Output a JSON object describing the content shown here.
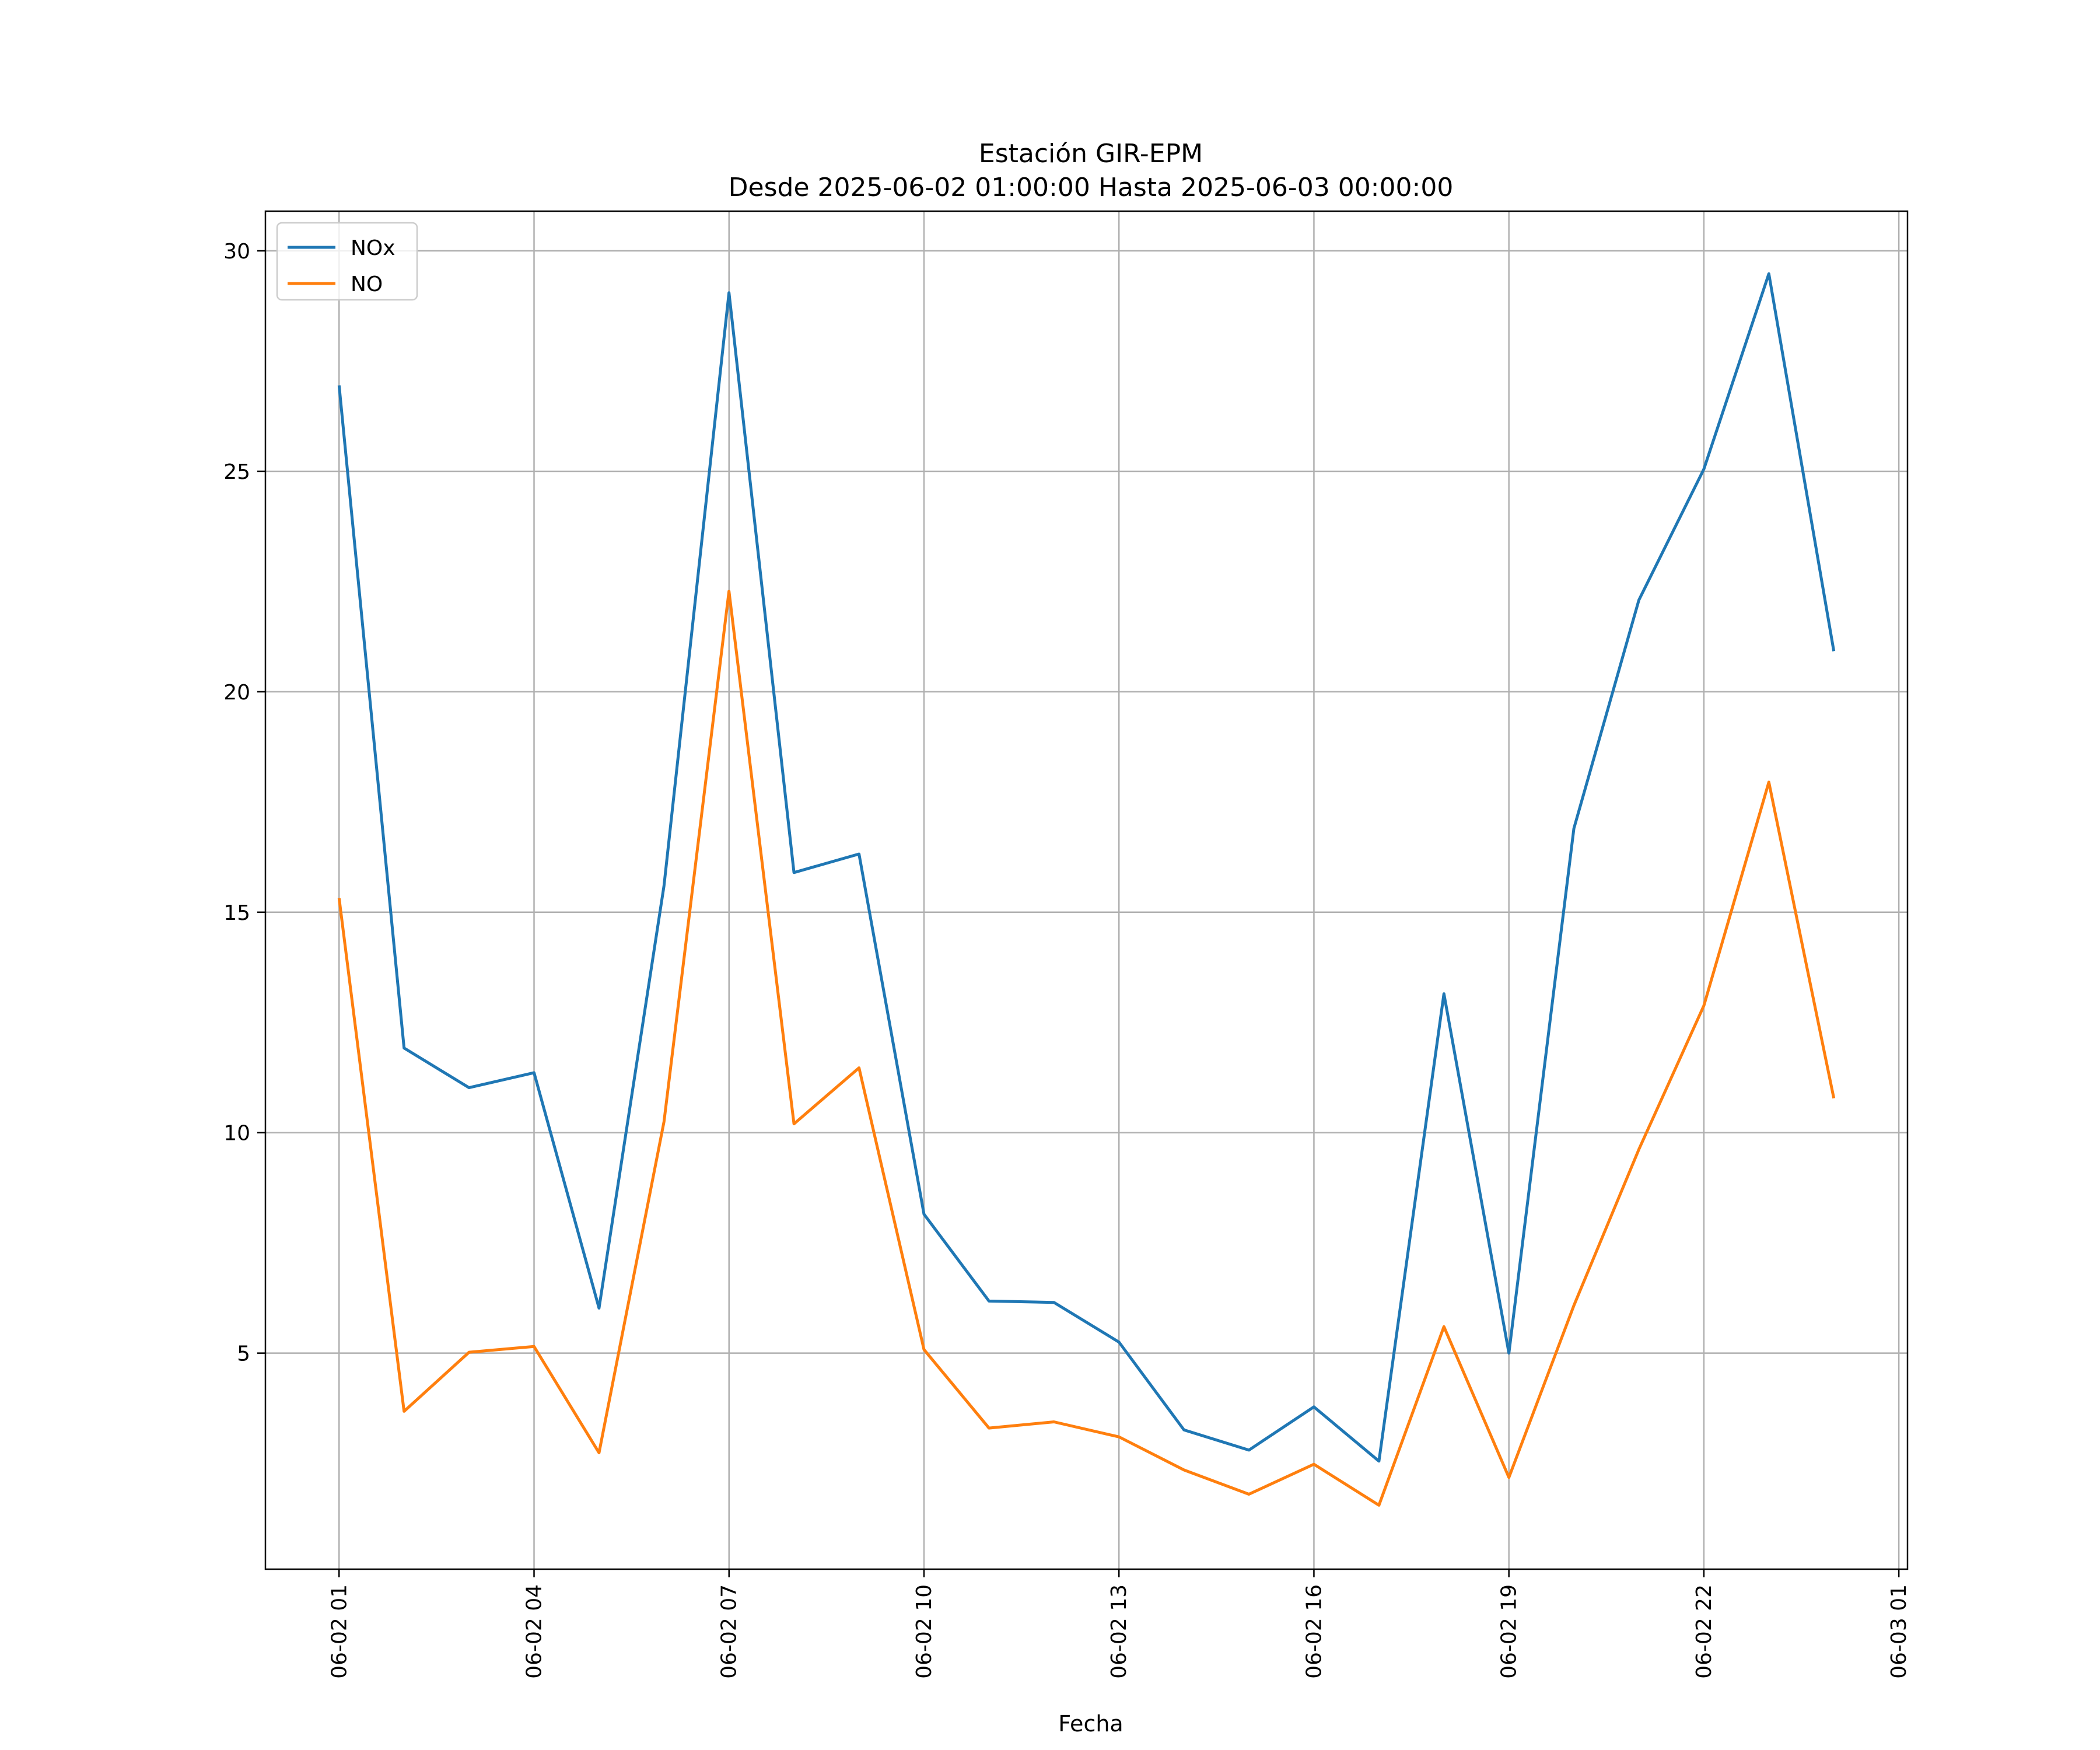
{
  "chart_data": {
    "type": "line",
    "title": "Estación GIR-EPM",
    "subtitle": "Desde 2025-06-02 01:00:00 Hasta 2025-06-03 00:00:00",
    "xlabel": "Fecha",
    "ylabel": "",
    "x": [
      "2025-06-02 01:00",
      "2025-06-02 02:00",
      "2025-06-02 03:00",
      "2025-06-02 04:00",
      "2025-06-02 05:00",
      "2025-06-02 06:00",
      "2025-06-02 07:00",
      "2025-06-02 08:00",
      "2025-06-02 09:00",
      "2025-06-02 10:00",
      "2025-06-02 11:00",
      "2025-06-02 12:00",
      "2025-06-02 13:00",
      "2025-06-02 14:00",
      "2025-06-02 15:00",
      "2025-06-02 16:00",
      "2025-06-02 17:00",
      "2025-06-02 18:00",
      "2025-06-02 19:00",
      "2025-06-02 20:00",
      "2025-06-02 21:00",
      "2025-06-02 22:00",
      "2025-06-02 23:00",
      "2025-06-03 00:00"
    ],
    "x_ticks": [
      "2025-06-02 01:00",
      "2025-06-02 04:00",
      "2025-06-02 07:00",
      "2025-06-02 10:00",
      "2025-06-02 13:00",
      "2025-06-02 16:00",
      "2025-06-02 19:00",
      "2025-06-02 22:00",
      "2025-06-03 01:00"
    ],
    "x_tick_labels": [
      "06-02 01",
      "06-02 04",
      "06-02 07",
      "06-02 10",
      "06-02 13",
      "06-02 16",
      "06-02 19",
      "06-02 22",
      "06-03 01"
    ],
    "xlim": [
      "2025-06-01 23:52",
      "2025-06-03 01:08"
    ],
    "y_ticks": [
      5,
      10,
      15,
      20,
      25,
      30
    ],
    "ylim": [
      0.1,
      30.9
    ],
    "grid": true,
    "legend_position": "upper-left",
    "series": [
      {
        "name": "NOx",
        "color": "#1f77b4",
        "values": [
          26.95,
          11.92,
          11.02,
          11.36,
          6.02,
          15.6,
          29.05,
          15.9,
          16.32,
          8.15,
          6.18,
          6.15,
          5.25,
          3.26,
          2.8,
          3.78,
          2.55,
          13.15,
          5.0,
          16.9,
          22.08,
          25.05,
          29.48,
          20.92
        ]
      },
      {
        "name": "NO",
        "color": "#ff7f0e",
        "values": [
          15.32,
          3.68,
          5.02,
          5.15,
          2.74,
          10.25,
          22.28,
          10.2,
          11.47,
          5.08,
          3.3,
          3.44,
          3.1,
          2.35,
          1.8,
          2.48,
          1.55,
          5.6,
          2.18,
          6.08,
          9.62,
          12.88,
          17.95,
          10.78
        ]
      }
    ]
  }
}
